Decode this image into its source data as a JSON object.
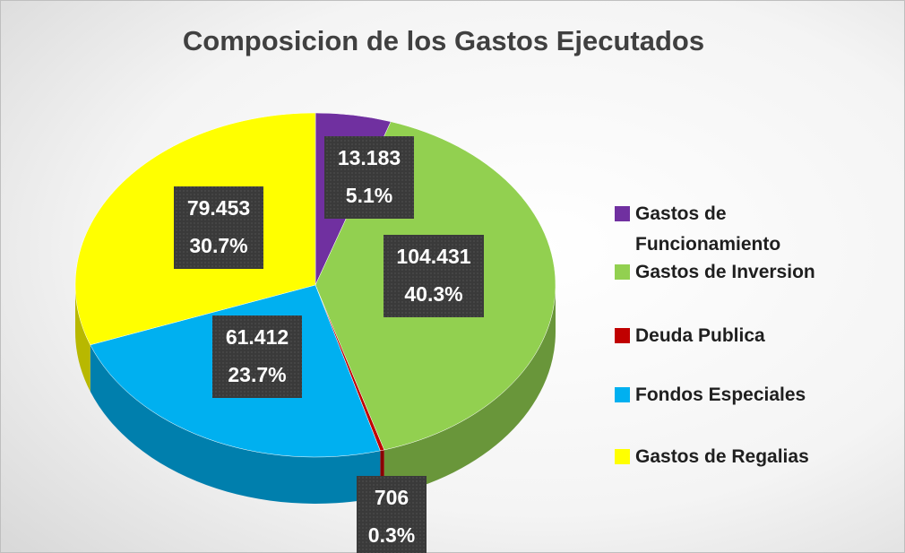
{
  "chart_data": {
    "type": "pie",
    "title": "Composicion de los Gastos Ejecutados",
    "categories": [
      "Gastos de Funcionamiento",
      "Gastos de Inversion",
      "Deuda Publica",
      "Fondos Especiales",
      "Gastos de Regalias"
    ],
    "values": [
      13183,
      104431,
      706,
      61412,
      79453
    ],
    "value_labels": [
      "13.183",
      "104.431",
      "706",
      "61.412",
      "79.453"
    ],
    "percentages": [
      5.1,
      40.3,
      0.3,
      23.7,
      30.7
    ],
    "percentage_labels": [
      "5.1%",
      "40.3%",
      "0.3%",
      "23.7%",
      "30.7%"
    ],
    "colors": [
      "#7030a0",
      "#92d050",
      "#c00000",
      "#00b0f0",
      "#ffff00"
    ],
    "legend": "right"
  }
}
